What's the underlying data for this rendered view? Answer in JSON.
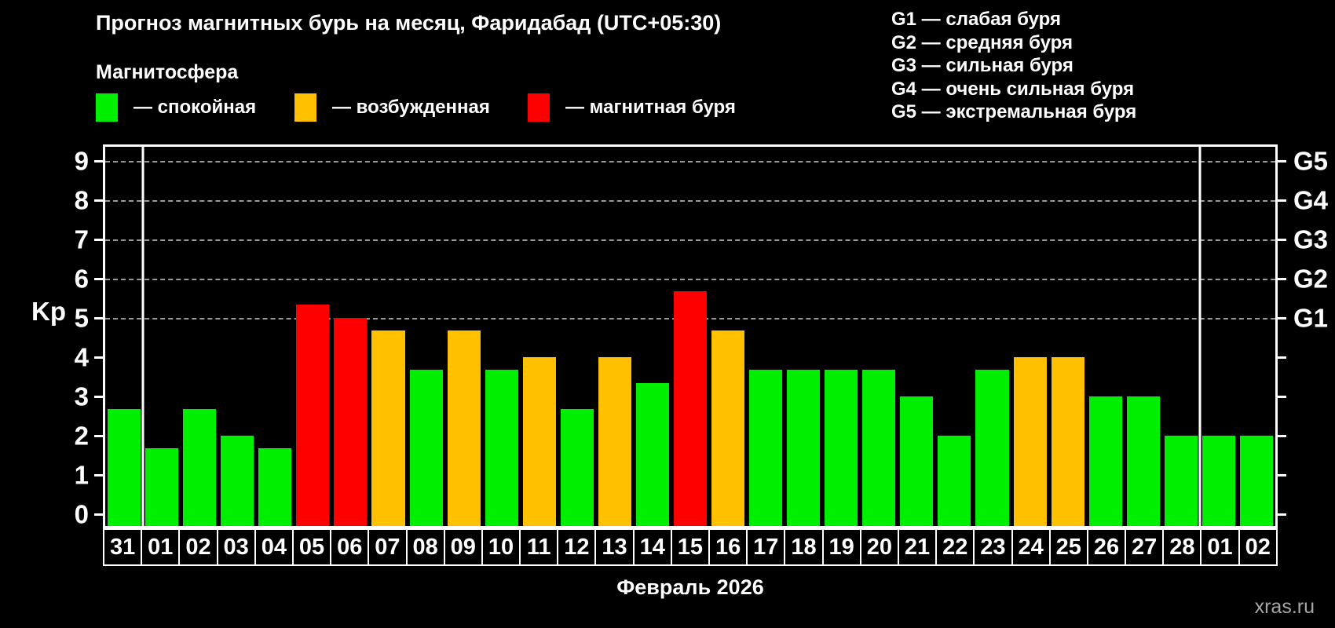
{
  "header": {
    "title": "Прогноз магнитных бурь на месяц, Фаридабад (UTC+05:30)"
  },
  "g_scale": [
    "G1 — слабая буря",
    "G2 — средняя буря",
    "G3 — сильная буря",
    "G4 — очень сильная буря",
    "G5 — экстремальная буря"
  ],
  "magnetosphere": {
    "label": "Магнитосфера",
    "items": [
      {
        "state": "quiet",
        "color": "#00ef00",
        "label": "— спокойная"
      },
      {
        "state": "excited",
        "color": "#ffc000",
        "label": "— возбужденная"
      },
      {
        "state": "storm",
        "color": "#ff0000",
        "label": "— магнитная буря"
      }
    ]
  },
  "axis": {
    "left_label": "Kp",
    "left_ticks": [
      "0",
      "1",
      "2",
      "3",
      "4",
      "5",
      "6",
      "7",
      "8",
      "9"
    ],
    "right_ticks": [
      {
        "kp": 5,
        "label": "G1"
      },
      {
        "kp": 6,
        "label": "G2"
      },
      {
        "kp": 7,
        "label": "G3"
      },
      {
        "kp": 8,
        "label": "G4"
      },
      {
        "kp": 9,
        "label": "G5"
      }
    ]
  },
  "chart_data": {
    "type": "bar",
    "title": "Прогноз магнитных бурь на месяц, Фаридабад (UTC+05:30)",
    "xlabel": "Февраль 2026",
    "ylabel": "Kp",
    "ylim": [
      -0.31,
      9.35
    ],
    "grid_levels": [
      5,
      6,
      7,
      8,
      9
    ],
    "legend_position": "top",
    "categories": [
      "31",
      "01",
      "02",
      "03",
      "04",
      "05",
      "06",
      "07",
      "08",
      "09",
      "10",
      "11",
      "12",
      "13",
      "14",
      "15",
      "16",
      "17",
      "18",
      "19",
      "20",
      "21",
      "22",
      "23",
      "24",
      "25",
      "26",
      "27",
      "28",
      "01",
      "02"
    ],
    "values": [
      2.67,
      1.67,
      2.67,
      2.0,
      1.67,
      5.33,
      5.0,
      4.67,
      3.67,
      4.67,
      3.67,
      4.0,
      2.67,
      4.0,
      3.33,
      5.67,
      4.67,
      3.67,
      3.67,
      3.67,
      3.67,
      3.0,
      2.0,
      3.67,
      4.0,
      4.0,
      3.0,
      3.0,
      2.0,
      2.0,
      2.0
    ],
    "states": [
      "quiet",
      "quiet",
      "quiet",
      "quiet",
      "quiet",
      "storm",
      "storm",
      "excited",
      "quiet",
      "excited",
      "quiet",
      "excited",
      "quiet",
      "excited",
      "quiet",
      "storm",
      "excited",
      "quiet",
      "quiet",
      "quiet",
      "quiet",
      "quiet",
      "quiet",
      "quiet",
      "excited",
      "excited",
      "quiet",
      "quiet",
      "quiet",
      "quiet",
      "quiet"
    ],
    "palette": {
      "quiet": "#00ef00",
      "excited": "#ffc000",
      "storm": "#ff0000"
    },
    "month_boundaries": [
      1,
      29
    ]
  },
  "footer": {
    "month_label": "Февраль 2026",
    "watermark": "xras.ru"
  }
}
